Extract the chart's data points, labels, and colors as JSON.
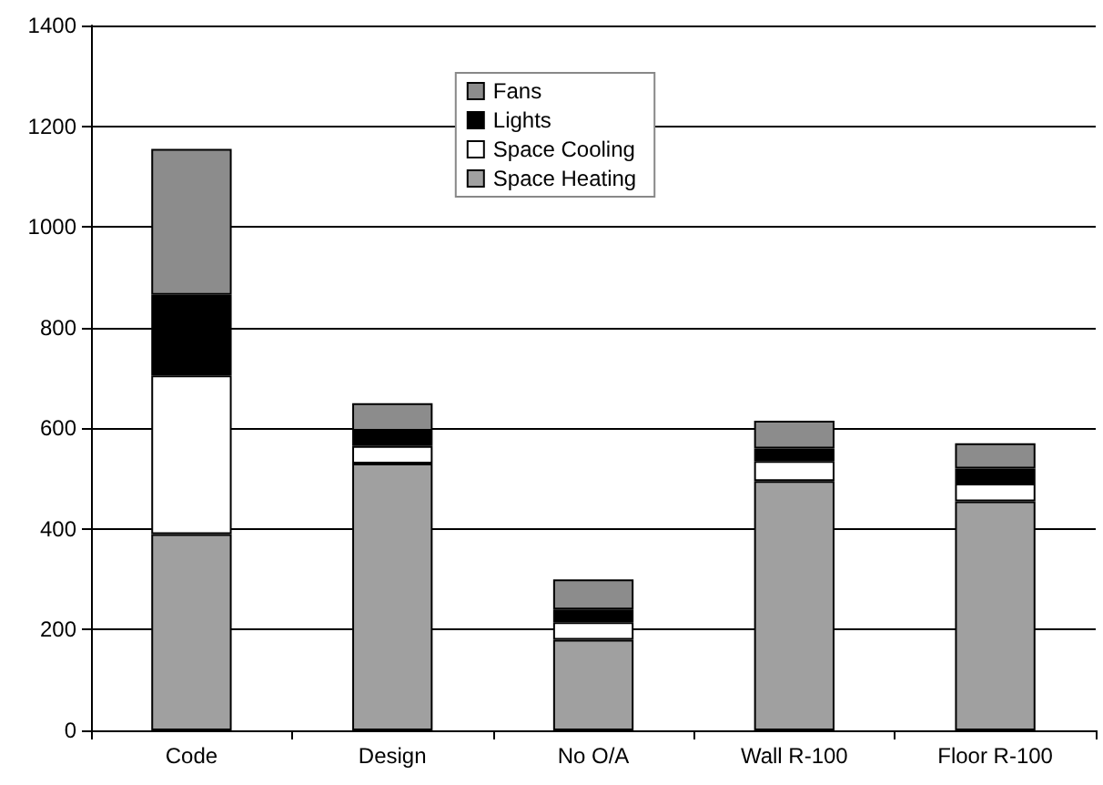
{
  "chart_data": {
    "type": "bar",
    "stacked": true,
    "categories": [
      "Code",
      "Design",
      "No O/A",
      "Wall R-100",
      "Floor R-100"
    ],
    "series": [
      {
        "name": "Space Heating",
        "color": "#a0a0a0",
        "values": [
          390,
          530,
          180,
          495,
          455
        ]
      },
      {
        "name": "Space Cooling",
        "color": "#ffffff",
        "values": [
          315,
          35,
          35,
          40,
          35
        ]
      },
      {
        "name": "Lights",
        "color": "#000000",
        "values": [
          160,
          30,
          25,
          25,
          30
        ]
      },
      {
        "name": "Fans",
        "color": "#8c8c8c",
        "values": [
          290,
          55,
          60,
          55,
          50
        ]
      }
    ],
    "ylim": [
      0,
      1400
    ],
    "yticks": [
      0,
      200,
      400,
      600,
      800,
      1000,
      1200,
      1400
    ],
    "grid": "y",
    "legend": "top"
  }
}
